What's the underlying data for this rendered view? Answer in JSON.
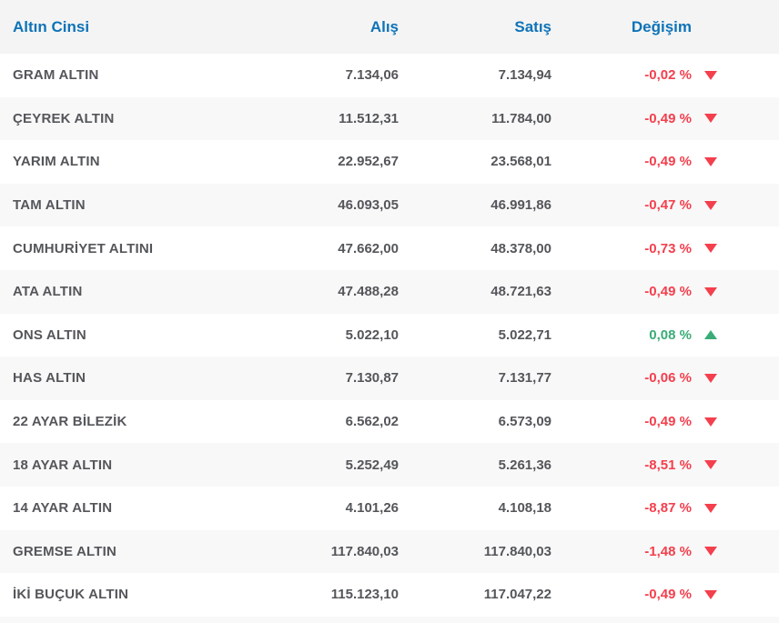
{
  "table": {
    "header": {
      "name": "Altın Cinsi",
      "buy": "Alış",
      "sell": "Satış",
      "change": "Değişim"
    },
    "rows": [
      {
        "name": "GRAM ALTIN",
        "buy": "7.134,06",
        "sell": "7.134,94",
        "change": "-0,02 %",
        "direction": "down"
      },
      {
        "name": "ÇEYREK ALTIN",
        "buy": "11.512,31",
        "sell": "11.784,00",
        "change": "-0,49 %",
        "direction": "down"
      },
      {
        "name": "YARIM ALTIN",
        "buy": "22.952,67",
        "sell": "23.568,01",
        "change": "-0,49 %",
        "direction": "down"
      },
      {
        "name": "TAM ALTIN",
        "buy": "46.093,05",
        "sell": "46.991,86",
        "change": "-0,47 %",
        "direction": "down"
      },
      {
        "name": "CUMHURİYET ALTINI",
        "buy": "47.662,00",
        "sell": "48.378,00",
        "change": "-0,73 %",
        "direction": "down"
      },
      {
        "name": "ATA ALTIN",
        "buy": "47.488,28",
        "sell": "48.721,63",
        "change": "-0,49 %",
        "direction": "down"
      },
      {
        "name": "ONS ALTIN",
        "buy": "5.022,10",
        "sell": "5.022,71",
        "change": "0,08 %",
        "direction": "up"
      },
      {
        "name": "HAS ALTIN",
        "buy": "7.130,87",
        "sell": "7.131,77",
        "change": "-0,06 %",
        "direction": "down"
      },
      {
        "name": "22 AYAR BİLEZİK",
        "buy": "6.562,02",
        "sell": "6.573,09",
        "change": "-0,49 %",
        "direction": "down"
      },
      {
        "name": "18 AYAR ALTIN",
        "buy": "5.252,49",
        "sell": "5.261,36",
        "change": "-8,51 %",
        "direction": "down"
      },
      {
        "name": "14 AYAR ALTIN",
        "buy": "4.101,26",
        "sell": "4.108,18",
        "change": "-8,87 %",
        "direction": "down"
      },
      {
        "name": "GREMSE ALTIN",
        "buy": "117.840,03",
        "sell": "117.840,03",
        "change": "-1,48 %",
        "direction": "down"
      },
      {
        "name": "İKİ BUÇUK ALTIN",
        "buy": "115.123,10",
        "sell": "117.047,22",
        "change": "-0,49 %",
        "direction": "down"
      }
    ]
  },
  "colors": {
    "header_text": "#0e73b7",
    "header_bg": "#f4f4f4",
    "alt_row_bg": "#f8f8f8",
    "label_text": "#54565a",
    "negative": "#f43f4d",
    "positive": "#3aac78"
  }
}
